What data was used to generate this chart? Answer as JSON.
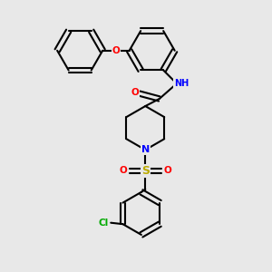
{
  "background_color": "#e8e8e8",
  "bond_color": "#000000",
  "bond_width": 1.5,
  "figsize": [
    3.0,
    3.0
  ],
  "dpi": 100,
  "atom_colors": {
    "O": "#ff0000",
    "N": "#0000ff",
    "S": "#bbaa00",
    "Cl": "#00aa00",
    "H": "#888888",
    "C": "#000000"
  }
}
